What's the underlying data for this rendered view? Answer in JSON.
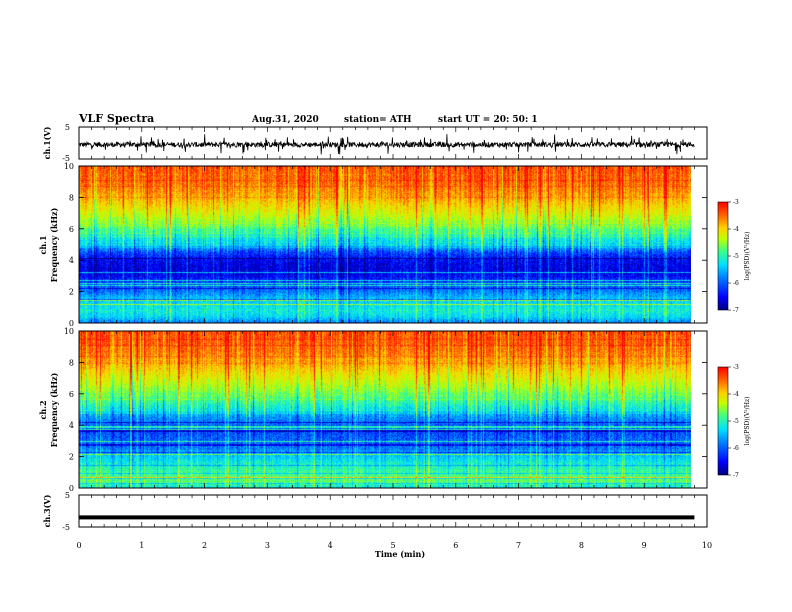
{
  "header": {
    "title": "VLF Spectra",
    "date": "Aug.31, 2020",
    "station": "station= ATH",
    "start": "start  UT =   20: 50: 1"
  },
  "chart_data": [
    {
      "type": "line",
      "panel": "ch1-waveform",
      "ylabel": "ch.1(V)",
      "ylim": [
        -5,
        5
      ],
      "yticks": [
        "5",
        "-5"
      ],
      "xlim": [
        0,
        10
      ],
      "signal": "noisy waveform around -0.5 V with spikes to about ±3 V over 0–9.8 min"
    },
    {
      "type": "heatmap",
      "panel": "ch1-spectrogram",
      "ylabel": "ch.1\nFrequency (kHz)",
      "ylim": [
        0,
        10
      ],
      "yticks": [
        "0",
        "2",
        "4",
        "6",
        "8",
        "10"
      ],
      "xlim": [
        0,
        10
      ],
      "data_xmax": 9.8,
      "zlabel": "log(PSD)(V²/Hz)",
      "zlim": [
        -7,
        -3
      ],
      "zticks": [
        "-3",
        "-4",
        "-5",
        "-6",
        "-7"
      ],
      "colormap": [
        "#00007f",
        "#0000ff",
        "#0080ff",
        "#00e0ff",
        "#40ff80",
        "#c0ff00",
        "#ffd000",
        "#ff6000",
        "#ff0000"
      ],
      "profile": {
        "freq_khz": [
          0,
          0.4,
          0.8,
          1.5,
          2.0,
          2.5,
          3.0,
          3.5,
          4.0,
          4.5,
          5.0,
          6.0,
          7.0,
          8.0,
          9.0,
          10.0
        ],
        "log_psd": [
          -6.0,
          -5.5,
          -5.3,
          -5.6,
          -6.0,
          -6.2,
          -6.5,
          -6.6,
          -6.5,
          -6.2,
          -5.6,
          -4.9,
          -4.3,
          -3.8,
          -3.5,
          -3.4
        ]
      }
    },
    {
      "type": "heatmap",
      "panel": "ch2-spectrogram",
      "ylabel": "ch.2\nFrequency (kHz)",
      "ylim": [
        0,
        10
      ],
      "yticks": [
        "0",
        "2",
        "4",
        "6",
        "8",
        "10"
      ],
      "xlim": [
        0,
        10
      ],
      "data_xmax": 9.8,
      "zlabel": "log(PSD)(V²/Hz)",
      "zlim": [
        -7,
        -3
      ],
      "zticks": [
        "-3",
        "-4",
        "-5",
        "-6",
        "-7"
      ],
      "profile": {
        "freq_khz": [
          0,
          0.4,
          0.8,
          1.5,
          2.0,
          2.5,
          3.0,
          3.5,
          4.0,
          4.5,
          5.0,
          6.0,
          7.0,
          8.0,
          9.0,
          10.0
        ],
        "log_psd": [
          -5.4,
          -4.9,
          -5.0,
          -5.3,
          -5.6,
          -6.0,
          -6.1,
          -6.2,
          -6.1,
          -5.9,
          -5.4,
          -4.8,
          -4.3,
          -3.8,
          -3.5,
          -3.4
        ]
      }
    },
    {
      "type": "line",
      "panel": "ch3-waveform",
      "ylabel": "ch.3(V)",
      "ylim": [
        -5,
        5
      ],
      "yticks": [
        "5",
        "-5"
      ],
      "xlim": [
        0,
        10
      ],
      "signal": "flat thick band near -2 V over 0–9.8 min",
      "level_v": -2
    }
  ],
  "xaxis": {
    "label": "Time  (min)",
    "ticks": [
      "0",
      "1",
      "2",
      "3",
      "4",
      "5",
      "6",
      "7",
      "8",
      "9",
      "10"
    ]
  }
}
